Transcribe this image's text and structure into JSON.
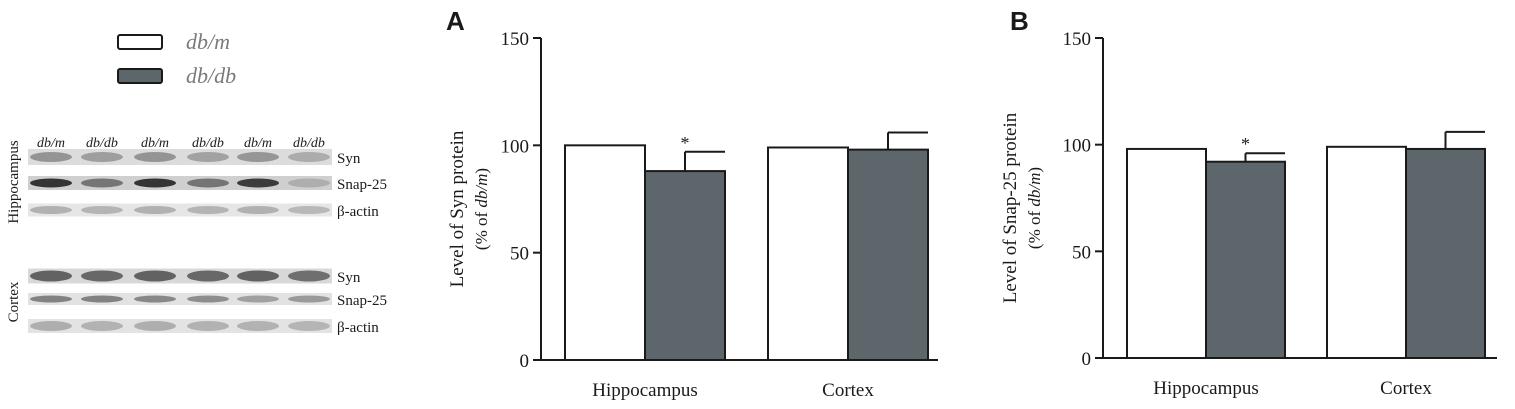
{
  "legend": {
    "items": [
      {
        "label": "db/m",
        "color": "#ffffff"
      },
      {
        "label": "db/db",
        "color": "#5d666b"
      }
    ]
  },
  "western_blot": {
    "lane_labels": [
      "db/m",
      "db/db",
      "db/m",
      "db/db",
      "db/m",
      "db/db"
    ],
    "groups": [
      {
        "name": "Hippocampus",
        "bands": [
          "Syn",
          "Snap-25",
          "β-actin"
        ]
      },
      {
        "name": "Cortex",
        "bands": [
          "Syn",
          "Snap-25",
          "β-actin"
        ]
      }
    ]
  },
  "colors": {
    "db_m": "#ffffff",
    "db_db": "#5d666b",
    "axis": "#1a1a1a"
  },
  "chart_data": [
    {
      "type": "bar",
      "panel": "A",
      "categories": [
        "Hippocampus",
        "Cortex"
      ],
      "series": [
        {
          "name": "db/m",
          "values": [
            100,
            99
          ],
          "errors": [
            0,
            0
          ]
        },
        {
          "name": "db/db",
          "values": [
            88,
            98
          ],
          "errors": [
            9,
            8
          ]
        }
      ],
      "significance": [
        {
          "category": "Hippocampus",
          "series": "db/db",
          "mark": "*"
        }
      ],
      "ylabel_line1": "Level of Syn protein",
      "ylabel_line2_prefix": "(% of ",
      "ylabel_line2_italic": "db/m",
      "ylabel_line2_suffix": ")",
      "ylim": [
        0,
        150
      ],
      "yticks": [
        0,
        50,
        100,
        150
      ],
      "grid": false
    },
    {
      "type": "bar",
      "panel": "B",
      "categories": [
        "Hippocampus",
        "Cortex"
      ],
      "series": [
        {
          "name": "db/m",
          "values": [
            98,
            99
          ],
          "errors": [
            0,
            0
          ]
        },
        {
          "name": "db/db",
          "values": [
            92,
            98
          ],
          "errors": [
            4,
            8
          ]
        }
      ],
      "significance": [
        {
          "category": "Hippocampus",
          "series": "db/db",
          "mark": "*"
        }
      ],
      "ylabel_line1": "Level of Snap-25 protein",
      "ylabel_line2_prefix": "(% of ",
      "ylabel_line2_italic": "db/m",
      "ylabel_line2_suffix": ")",
      "ylim": [
        0,
        150
      ],
      "yticks": [
        0,
        50,
        100,
        150
      ],
      "grid": false
    }
  ]
}
